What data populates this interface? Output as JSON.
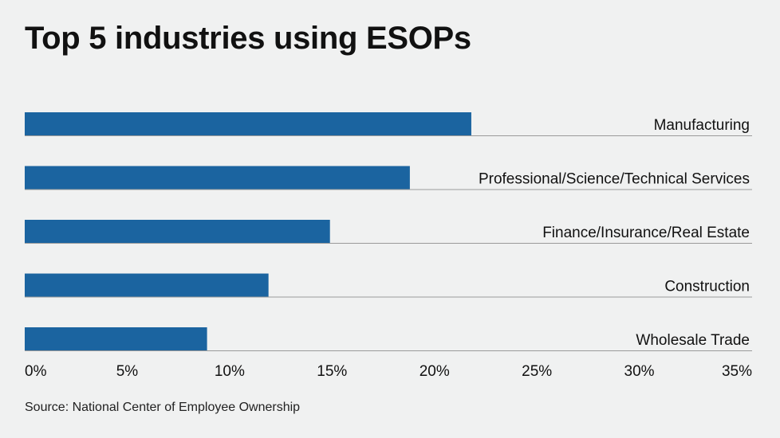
{
  "chart_data": {
    "type": "bar",
    "orientation": "horizontal",
    "title": "Top 5 industries using ESOPs",
    "categories": [
      "Manufacturing",
      "Professional/Science/Technical Services",
      "Finance/Insurance/Real Estate",
      "Construction",
      "Wholesale Trade"
    ],
    "values": [
      21.8,
      18.8,
      14.9,
      11.9,
      8.9
    ],
    "xlim": [
      0,
      35
    ],
    "x_ticks": [
      "0%",
      "5%",
      "10%",
      "15%",
      "20%",
      "25%",
      "30%",
      "35%"
    ],
    "tick_values": [
      0,
      5,
      10,
      15,
      20,
      25,
      30,
      35
    ],
    "value_unit": "%",
    "grid": false,
    "legend": "none",
    "bar_color": "#1b64a0",
    "baseline_color": "#9a9a9a",
    "source": "Source: National Center of Employee Ownership"
  }
}
